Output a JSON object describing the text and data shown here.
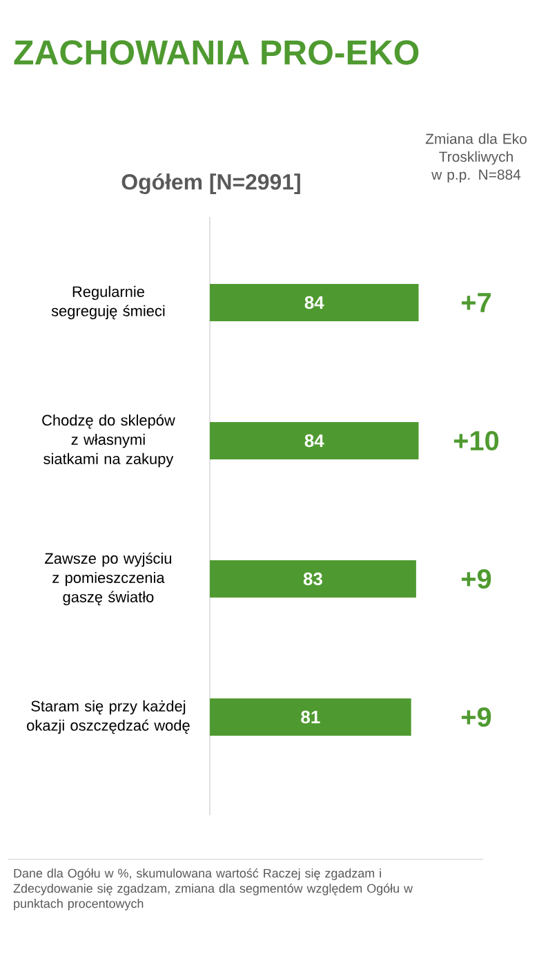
{
  "chart_data": {
    "type": "bar",
    "orientation": "horizontal",
    "title": "ZACHOWANIA PRO-EKO",
    "subtitle": "Ogółem [N=2991]",
    "categories": [
      "Regularnie segreguję śmieci",
      "Chodzę do sklepów z własnymi siatkami na zakupy",
      "Zawsze po wyjściu z pomieszczenia gaszę światło",
      "Staram się przy każdej okazji oszczędzać wodę"
    ],
    "values": [
      84,
      84,
      83,
      81
    ],
    "color": "#4f9a30",
    "data_labels": true,
    "annotations": [
      "Zmiana dla Eko Troskliwych w p.p. N=884",
      "+7",
      "+10",
      "+9",
      "+9",
      "Dane dla Ogółu w %, skumulowana wartość Raczej się zgadzam i Zdecydowanie się zgadzam, zmiana dla segmentów względem Ogółu w punktach procentowych"
    ]
  }
}
